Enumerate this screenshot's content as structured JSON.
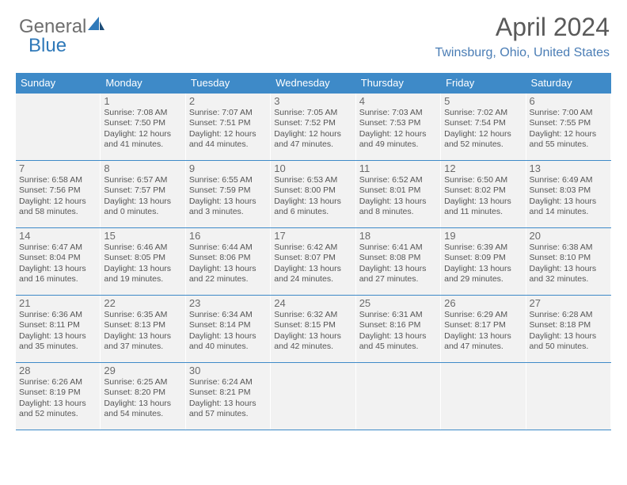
{
  "logo": {
    "text1": "General",
    "text2": "Blue"
  },
  "title": "April 2024",
  "location": "Twinsburg, Ohio, United States",
  "colors": {
    "header_bg": "#3e8ac8",
    "header_text": "#ffffff",
    "cell_bg": "#f2f2f2",
    "text": "#555555",
    "accent": "#2f79b9",
    "row_border": "#3e8ac8"
  },
  "days_of_week": [
    "Sunday",
    "Monday",
    "Tuesday",
    "Wednesday",
    "Thursday",
    "Friday",
    "Saturday"
  ],
  "weeks": [
    [
      null,
      {
        "n": "1",
        "sr": "Sunrise: 7:08 AM",
        "ss": "Sunset: 7:50 PM",
        "d1": "Daylight: 12 hours",
        "d2": "and 41 minutes."
      },
      {
        "n": "2",
        "sr": "Sunrise: 7:07 AM",
        "ss": "Sunset: 7:51 PM",
        "d1": "Daylight: 12 hours",
        "d2": "and 44 minutes."
      },
      {
        "n": "3",
        "sr": "Sunrise: 7:05 AM",
        "ss": "Sunset: 7:52 PM",
        "d1": "Daylight: 12 hours",
        "d2": "and 47 minutes."
      },
      {
        "n": "4",
        "sr": "Sunrise: 7:03 AM",
        "ss": "Sunset: 7:53 PM",
        "d1": "Daylight: 12 hours",
        "d2": "and 49 minutes."
      },
      {
        "n": "5",
        "sr": "Sunrise: 7:02 AM",
        "ss": "Sunset: 7:54 PM",
        "d1": "Daylight: 12 hours",
        "d2": "and 52 minutes."
      },
      {
        "n": "6",
        "sr": "Sunrise: 7:00 AM",
        "ss": "Sunset: 7:55 PM",
        "d1": "Daylight: 12 hours",
        "d2": "and 55 minutes."
      }
    ],
    [
      {
        "n": "7",
        "sr": "Sunrise: 6:58 AM",
        "ss": "Sunset: 7:56 PM",
        "d1": "Daylight: 12 hours",
        "d2": "and 58 minutes."
      },
      {
        "n": "8",
        "sr": "Sunrise: 6:57 AM",
        "ss": "Sunset: 7:57 PM",
        "d1": "Daylight: 13 hours",
        "d2": "and 0 minutes."
      },
      {
        "n": "9",
        "sr": "Sunrise: 6:55 AM",
        "ss": "Sunset: 7:59 PM",
        "d1": "Daylight: 13 hours",
        "d2": "and 3 minutes."
      },
      {
        "n": "10",
        "sr": "Sunrise: 6:53 AM",
        "ss": "Sunset: 8:00 PM",
        "d1": "Daylight: 13 hours",
        "d2": "and 6 minutes."
      },
      {
        "n": "11",
        "sr": "Sunrise: 6:52 AM",
        "ss": "Sunset: 8:01 PM",
        "d1": "Daylight: 13 hours",
        "d2": "and 8 minutes."
      },
      {
        "n": "12",
        "sr": "Sunrise: 6:50 AM",
        "ss": "Sunset: 8:02 PM",
        "d1": "Daylight: 13 hours",
        "d2": "and 11 minutes."
      },
      {
        "n": "13",
        "sr": "Sunrise: 6:49 AM",
        "ss": "Sunset: 8:03 PM",
        "d1": "Daylight: 13 hours",
        "d2": "and 14 minutes."
      }
    ],
    [
      {
        "n": "14",
        "sr": "Sunrise: 6:47 AM",
        "ss": "Sunset: 8:04 PM",
        "d1": "Daylight: 13 hours",
        "d2": "and 16 minutes."
      },
      {
        "n": "15",
        "sr": "Sunrise: 6:46 AM",
        "ss": "Sunset: 8:05 PM",
        "d1": "Daylight: 13 hours",
        "d2": "and 19 minutes."
      },
      {
        "n": "16",
        "sr": "Sunrise: 6:44 AM",
        "ss": "Sunset: 8:06 PM",
        "d1": "Daylight: 13 hours",
        "d2": "and 22 minutes."
      },
      {
        "n": "17",
        "sr": "Sunrise: 6:42 AM",
        "ss": "Sunset: 8:07 PM",
        "d1": "Daylight: 13 hours",
        "d2": "and 24 minutes."
      },
      {
        "n": "18",
        "sr": "Sunrise: 6:41 AM",
        "ss": "Sunset: 8:08 PM",
        "d1": "Daylight: 13 hours",
        "d2": "and 27 minutes."
      },
      {
        "n": "19",
        "sr": "Sunrise: 6:39 AM",
        "ss": "Sunset: 8:09 PM",
        "d1": "Daylight: 13 hours",
        "d2": "and 29 minutes."
      },
      {
        "n": "20",
        "sr": "Sunrise: 6:38 AM",
        "ss": "Sunset: 8:10 PM",
        "d1": "Daylight: 13 hours",
        "d2": "and 32 minutes."
      }
    ],
    [
      {
        "n": "21",
        "sr": "Sunrise: 6:36 AM",
        "ss": "Sunset: 8:11 PM",
        "d1": "Daylight: 13 hours",
        "d2": "and 35 minutes."
      },
      {
        "n": "22",
        "sr": "Sunrise: 6:35 AM",
        "ss": "Sunset: 8:13 PM",
        "d1": "Daylight: 13 hours",
        "d2": "and 37 minutes."
      },
      {
        "n": "23",
        "sr": "Sunrise: 6:34 AM",
        "ss": "Sunset: 8:14 PM",
        "d1": "Daylight: 13 hours",
        "d2": "and 40 minutes."
      },
      {
        "n": "24",
        "sr": "Sunrise: 6:32 AM",
        "ss": "Sunset: 8:15 PM",
        "d1": "Daylight: 13 hours",
        "d2": "and 42 minutes."
      },
      {
        "n": "25",
        "sr": "Sunrise: 6:31 AM",
        "ss": "Sunset: 8:16 PM",
        "d1": "Daylight: 13 hours",
        "d2": "and 45 minutes."
      },
      {
        "n": "26",
        "sr": "Sunrise: 6:29 AM",
        "ss": "Sunset: 8:17 PM",
        "d1": "Daylight: 13 hours",
        "d2": "and 47 minutes."
      },
      {
        "n": "27",
        "sr": "Sunrise: 6:28 AM",
        "ss": "Sunset: 8:18 PM",
        "d1": "Daylight: 13 hours",
        "d2": "and 50 minutes."
      }
    ],
    [
      {
        "n": "28",
        "sr": "Sunrise: 6:26 AM",
        "ss": "Sunset: 8:19 PM",
        "d1": "Daylight: 13 hours",
        "d2": "and 52 minutes."
      },
      {
        "n": "29",
        "sr": "Sunrise: 6:25 AM",
        "ss": "Sunset: 8:20 PM",
        "d1": "Daylight: 13 hours",
        "d2": "and 54 minutes."
      },
      {
        "n": "30",
        "sr": "Sunrise: 6:24 AM",
        "ss": "Sunset: 8:21 PM",
        "d1": "Daylight: 13 hours",
        "d2": "and 57 minutes."
      },
      null,
      null,
      null,
      null
    ]
  ]
}
